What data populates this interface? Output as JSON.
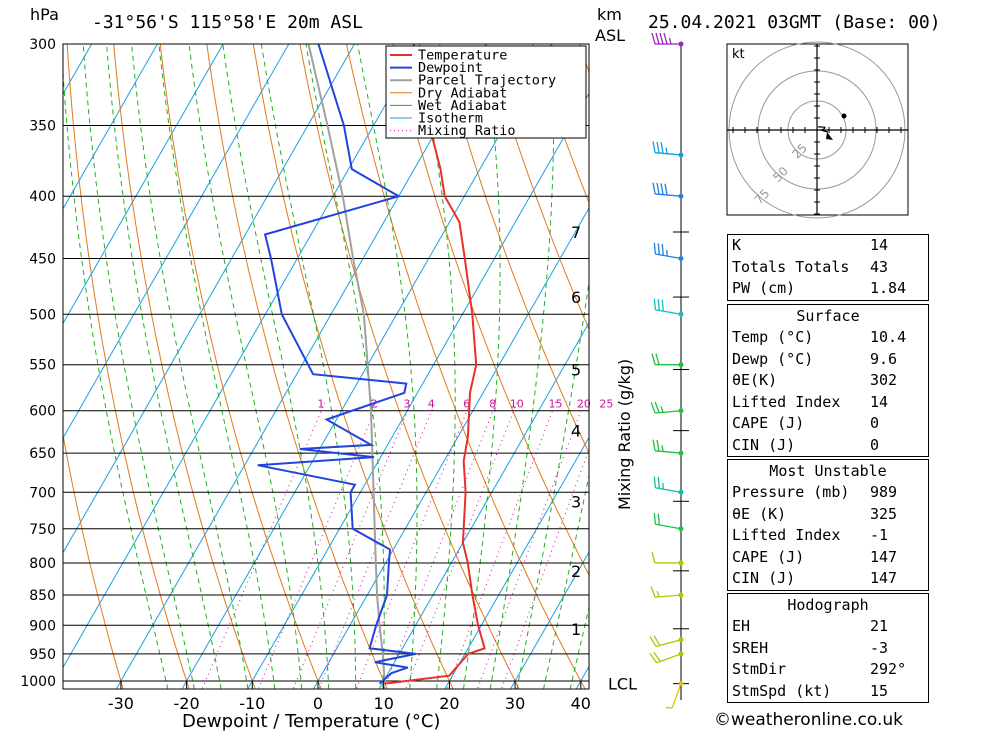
{
  "header": {
    "pressure_unit": "hPa",
    "location": "-31°56'S 115°58'E 20m ASL",
    "km_label": "km",
    "asl_label": "ASL",
    "datetime": "25.04.2021 03GMT (Base: 00)"
  },
  "legend": [
    "Temperature",
    "Dewpoint",
    "Parcel Trajectory",
    "Dry Adiabat",
    "Wet Adiabat",
    "Isotherm",
    "Mixing Ratio"
  ],
  "colors": {
    "temperature": "#e8302a",
    "dewpoint": "#2244dd",
    "parcel": "#a0a0a0",
    "dry_adiabat": "#e07a1a",
    "wet_adiabat": "#1eb01e",
    "isotherm": "#1aa0e0",
    "mixing_ratio": "#cc1199"
  },
  "chart_data": {
    "type": "line",
    "xlabel": "Dewpoint / Temperature (°C)",
    "ylabel": "hPa",
    "mixing_ratio_label": "Mixing Ratio (g/kg)",
    "pressure_ticks": [
      300,
      350,
      400,
      450,
      500,
      550,
      600,
      650,
      700,
      750,
      800,
      850,
      900,
      950,
      1000
    ],
    "temperature_ticks": [
      -30,
      -20,
      -10,
      0,
      10,
      20,
      30,
      40
    ],
    "height_ticks_km": [
      {
        "km": "7",
        "p": 428
      },
      {
        "km": "6",
        "p": 484
      },
      {
        "km": "5",
        "p": 555
      },
      {
        "km": "4",
        "p": 623
      },
      {
        "km": "3",
        "p": 712
      },
      {
        "km": "2",
        "p": 812
      },
      {
        "km": "1",
        "p": 906
      }
    ],
    "lcl_label": "LCL",
    "lcl_p": 1005,
    "mixing_ratio_values": [
      "1",
      "2",
      "3",
      "4",
      "6",
      "8",
      "10",
      "15",
      "20",
      "25"
    ],
    "temperature": [
      {
        "p": 1005,
        "t": 10.4
      },
      {
        "p": 990,
        "t": 19.5
      },
      {
        "p": 970,
        "t": 20.0
      },
      {
        "p": 950,
        "t": 20.5
      },
      {
        "p": 940,
        "t": 22.5
      },
      {
        "p": 900,
        "t": 19.5
      },
      {
        "p": 850,
        "t": 16.0
      },
      {
        "p": 800,
        "t": 12.5
      },
      {
        "p": 770,
        "t": 10.0
      },
      {
        "p": 700,
        "t": 6.0
      },
      {
        "p": 660,
        "t": 3.0
      },
      {
        "p": 630,
        "t": 1.5
      },
      {
        "p": 580,
        "t": -2.0
      },
      {
        "p": 550,
        "t": -3.5
      },
      {
        "p": 500,
        "t": -8.5
      },
      {
        "p": 450,
        "t": -14.5
      },
      {
        "p": 420,
        "t": -18.5
      },
      {
        "p": 400,
        "t": -23.0
      },
      {
        "p": 380,
        "t": -26.0
      },
      {
        "p": 350,
        "t": -31.5
      },
      {
        "p": 300,
        "t": -41.0
      }
    ],
    "dewpoint": [
      {
        "p": 1005,
        "t": 9.6
      },
      {
        "p": 985,
        "t": 10.5
      },
      {
        "p": 975,
        "t": 12.5
      },
      {
        "p": 965,
        "t": 7.0
      },
      {
        "p": 950,
        "t": 12.5
      },
      {
        "p": 940,
        "t": 5.0
      },
      {
        "p": 900,
        "t": 4.0
      },
      {
        "p": 850,
        "t": 3.0
      },
      {
        "p": 800,
        "t": 0.5
      },
      {
        "p": 780,
        "t": -0.5
      },
      {
        "p": 750,
        "t": -8.0
      },
      {
        "p": 700,
        "t": -11.5
      },
      {
        "p": 690,
        "t": -11.5
      },
      {
        "p": 665,
        "t": -28.0
      },
      {
        "p": 655,
        "t": -11.0
      },
      {
        "p": 645,
        "t": -23.0
      },
      {
        "p": 640,
        "t": -12.5
      },
      {
        "p": 610,
        "t": -21.5
      },
      {
        "p": 580,
        "t": -12.0
      },
      {
        "p": 570,
        "t": -12.5
      },
      {
        "p": 560,
        "t": -27.5
      },
      {
        "p": 500,
        "t": -37.5
      },
      {
        "p": 450,
        "t": -44.0
      },
      {
        "p": 430,
        "t": -47.0
      },
      {
        "p": 400,
        "t": -30.0
      },
      {
        "p": 380,
        "t": -39.5
      },
      {
        "p": 350,
        "t": -44.5
      },
      {
        "p": 300,
        "t": -55.5
      }
    ],
    "parcel": [
      {
        "p": 1005,
        "t": 10.4
      },
      {
        "p": 950,
        "t": 7.5
      },
      {
        "p": 900,
        "t": 4.5
      },
      {
        "p": 850,
        "t": 1.5
      },
      {
        "p": 800,
        "t": -1.5
      },
      {
        "p": 700,
        "t": -8.0
      },
      {
        "p": 600,
        "t": -15.5
      },
      {
        "p": 500,
        "t": -25.0
      },
      {
        "p": 450,
        "t": -31.5
      },
      {
        "p": 400,
        "t": -38.5
      },
      {
        "p": 350,
        "t": -47.0
      },
      {
        "p": 300,
        "t": -57.0
      }
    ],
    "wind": [
      {
        "p": 1005,
        "dir": 200,
        "kt": 8,
        "color": "#e0c000"
      },
      {
        "p": 950,
        "dir": 250,
        "kt": 20,
        "color": "#a0d000"
      },
      {
        "p": 925,
        "dir": 255,
        "kt": 20,
        "color": "#a0d000"
      },
      {
        "p": 850,
        "dir": 265,
        "kt": 15,
        "color": "#a0d000"
      },
      {
        "p": 800,
        "dir": 270,
        "kt": 10,
        "color": "#a0d000"
      },
      {
        "p": 750,
        "dir": 280,
        "kt": 20,
        "color": "#20c040"
      },
      {
        "p": 700,
        "dir": 280,
        "kt": 25,
        "color": "#10c0a0"
      },
      {
        "p": 650,
        "dir": 275,
        "kt": 25,
        "color": "#20c040"
      },
      {
        "p": 600,
        "dir": 265,
        "kt": 25,
        "color": "#20c040"
      },
      {
        "p": 550,
        "dir": 270,
        "kt": 20,
        "color": "#20c040"
      },
      {
        "p": 500,
        "dir": 280,
        "kt": 30,
        "color": "#10c0c0"
      },
      {
        "p": 450,
        "dir": 280,
        "kt": 35,
        "color": "#2080e0"
      },
      {
        "p": 400,
        "dir": 275,
        "kt": 40,
        "color": "#2080e0"
      },
      {
        "p": 370,
        "dir": 275,
        "kt": 35,
        "color": "#10a0e0"
      },
      {
        "p": 300,
        "dir": 270,
        "kt": 45,
        "color": "#a020c0"
      }
    ]
  },
  "hodograph": {
    "unit": "kt",
    "rings": [
      "25",
      "50",
      "75"
    ]
  },
  "indices": [
    {
      "label": "K",
      "value": "14"
    },
    {
      "label": "Totals Totals",
      "value": "43"
    },
    {
      "label": "PW (cm)",
      "value": "1.84"
    }
  ],
  "surface": {
    "title": "Surface",
    "rows": [
      {
        "label": "Temp (°C)",
        "value": "10.4"
      },
      {
        "label": "Dewp (°C)",
        "value": "9.6"
      },
      {
        "label": "θE(K)",
        "value": "302"
      },
      {
        "label": "Lifted Index",
        "value": "14"
      },
      {
        "label": "CAPE (J)",
        "value": "0"
      },
      {
        "label": "CIN (J)",
        "value": "0"
      }
    ]
  },
  "most_unstable": {
    "title": "Most Unstable",
    "rows": [
      {
        "label": "Pressure (mb)",
        "value": "989"
      },
      {
        "label": "θE (K)",
        "value": "325"
      },
      {
        "label": "Lifted Index",
        "value": "-1"
      },
      {
        "label": "CAPE (J)",
        "value": "147"
      },
      {
        "label": "CIN (J)",
        "value": "147"
      }
    ]
  },
  "hodograph_table": {
    "title": "Hodograph",
    "rows": [
      {
        "label": "EH",
        "value": "21"
      },
      {
        "label": "SREH",
        "value": "-3"
      },
      {
        "label": "StmDir",
        "value": "292°"
      },
      {
        "label": "StmSpd (kt)",
        "value": "15"
      }
    ]
  },
  "copyright": "©weatheronline.co.uk"
}
